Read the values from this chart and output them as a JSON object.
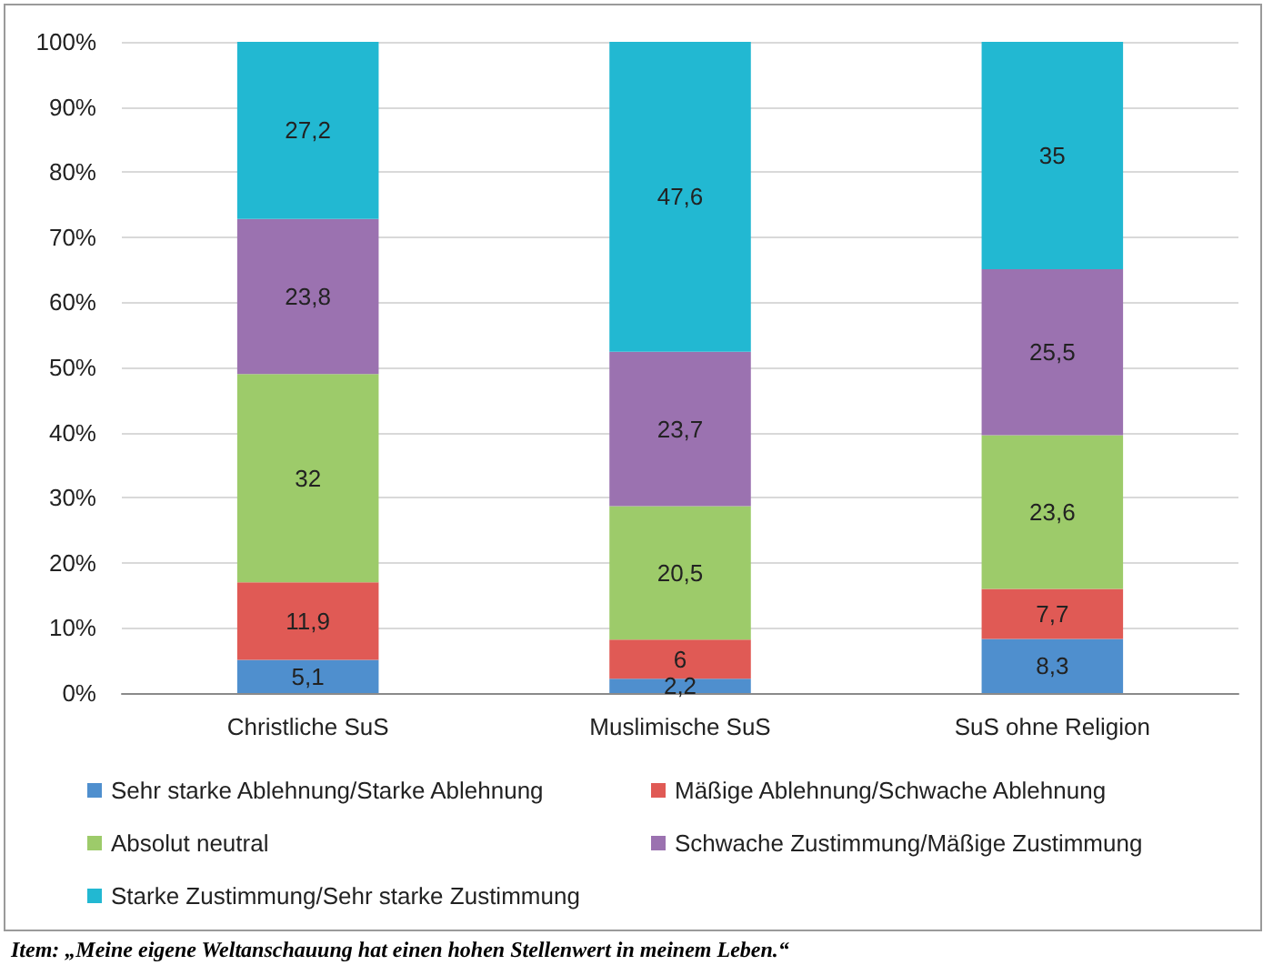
{
  "chart_data": {
    "type": "bar",
    "stacked": true,
    "categories": [
      "Christliche SuS",
      "Muslimische SuS",
      "SuS ohne Religion"
    ],
    "series": [
      {
        "name": "Sehr starke Ablehnung/Starke Ablehnung",
        "color": "#4f8fce",
        "values": [
          5.1,
          2.2,
          8.3
        ],
        "value_labels": [
          "5,1",
          "2,2",
          "8,3"
        ]
      },
      {
        "name": "Mäßige Ablehnung/Schwache Ablehnung",
        "color": "#e05a55",
        "values": [
          11.9,
          6,
          7.7
        ],
        "value_labels": [
          "11,9",
          "6",
          "7,7"
        ]
      },
      {
        "name": "Absolut neutral",
        "color": "#9dcb6a",
        "values": [
          32,
          20.5,
          23.6
        ],
        "value_labels": [
          "32",
          "20,5",
          "23,6"
        ]
      },
      {
        "name": "Schwache Zustimmung/Mäßige Zustimmung",
        "color": "#9b72b0",
        "values": [
          23.8,
          23.7,
          25.5
        ],
        "value_labels": [
          "23,8",
          "23,7",
          "25,5"
        ]
      },
      {
        "name": "Starke Zustimmung/Sehr starke Zustimmung",
        "color": "#22b8d2",
        "values": [
          27.2,
          47.6,
          35
        ],
        "value_labels": [
          "27,2",
          "47,6",
          "35"
        ]
      }
    ],
    "ylim": [
      0,
      100
    ],
    "yticks": [
      {
        "value": 0,
        "label": "0%"
      },
      {
        "value": 10,
        "label": "10%"
      },
      {
        "value": 20,
        "label": "20%"
      },
      {
        "value": 30,
        "label": "30%"
      },
      {
        "value": 40,
        "label": "40%"
      },
      {
        "value": 50,
        "label": "50%"
      },
      {
        "value": 60,
        "label": "60%"
      },
      {
        "value": 70,
        "label": "70%"
      },
      {
        "value": 80,
        "label": "80%"
      },
      {
        "value": 90,
        "label": "90%"
      },
      {
        "value": 100,
        "label": "100%"
      }
    ],
    "grid": "y",
    "legend": "bottom",
    "annotations": [
      "Item: „Meine eigene Weltanschauung hat einen hohen Stellenwert in meinem Leben.“"
    ]
  }
}
